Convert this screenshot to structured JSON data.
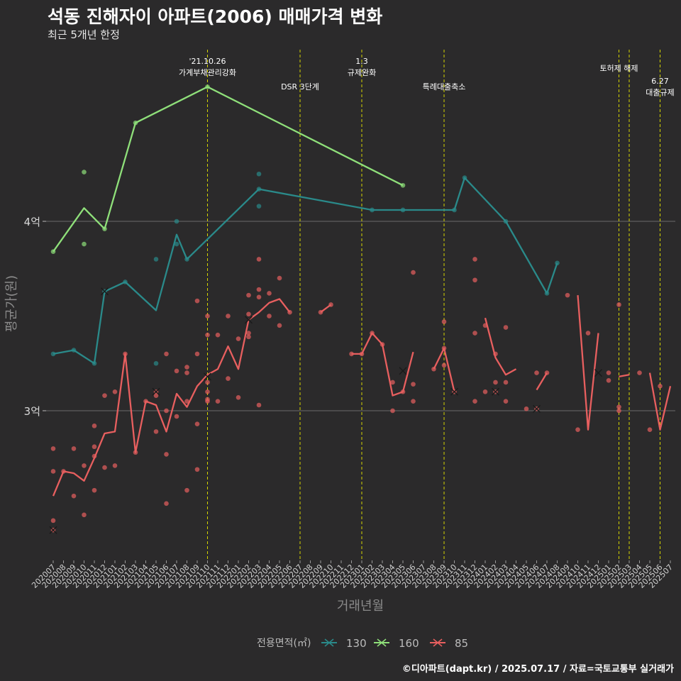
{
  "title": "석동 진해자이 아파트(2006) 매매가격 변화",
  "subtitle": "최근 5개년 한정",
  "caption": "©디아파트(dapt.kr) / 2025.07.17 / 자료=국토교통부 실거래가",
  "colors": {
    "background": "#2b2a2b",
    "s130": "#2a8a8a",
    "s160": "#8fe07a",
    "s85": "#e85f5f",
    "event_line": "#d4d400",
    "gridline": "#6b6b6b"
  },
  "chart_data": {
    "type": "line",
    "xlabel": "거래년월",
    "ylabel": "평균가(원)",
    "ylim": [
      2.3,
      4.8
    ],
    "yticks": [
      {
        "value": 3,
        "label": "3억"
      },
      {
        "value": 4,
        "label": "4억"
      }
    ],
    "grid": "horizontal major lines only",
    "legend_title": "전용면적(㎡)",
    "legend_position": "bottom",
    "categories": [
      "202007",
      "202008",
      "202009",
      "202010",
      "202011",
      "202012",
      "202101",
      "202102",
      "202103",
      "202104",
      "202105",
      "202106",
      "202107",
      "202108",
      "202109",
      "202110",
      "202111",
      "202112",
      "202201",
      "202202",
      "202203",
      "202204",
      "202205",
      "202206",
      "202207",
      "202208",
      "202209",
      "202210",
      "202211",
      "202212",
      "202301",
      "202302",
      "202303",
      "202304",
      "202305",
      "202306",
      "202307",
      "202308",
      "202309",
      "202310",
      "202311",
      "202312",
      "202401",
      "202402",
      "202403",
      "202404",
      "202405",
      "202406",
      "202407",
      "202408",
      "202409",
      "202410",
      "202411",
      "202412",
      "202501",
      "202502",
      "202503",
      "202504",
      "202505",
      "202506",
      "202507"
    ],
    "events": [
      {
        "x": 15,
        "label": "'21.10.26\n가계부채관리강화",
        "row": 0
      },
      {
        "x": 24,
        "label": "DSR 3단계",
        "row": 2
      },
      {
        "x": 30,
        "label": "1.3\n규제완화",
        "row": 0
      },
      {
        "x": 38,
        "label": "특례대출축소",
        "row": 2
      },
      {
        "x": 55,
        "label": "토허제 해제",
        "row": 1
      },
      {
        "x": 56,
        "label": "",
        "row": 1
      },
      {
        "x": 59,
        "label": "6.27\n대출규제",
        "row": 1.5
      }
    ],
    "series": [
      {
        "name": "130",
        "line": [
          [
            0,
            3.3
          ],
          [
            2,
            3.32
          ],
          [
            4,
            3.25
          ],
          [
            5,
            3.63
          ],
          [
            7,
            3.68
          ],
          [
            10,
            3.53
          ],
          [
            12,
            3.93
          ],
          [
            13,
            3.8
          ],
          [
            20,
            4.17
          ],
          [
            31,
            4.06
          ],
          [
            34,
            4.06
          ],
          [
            39,
            4.06
          ],
          [
            40,
            4.23
          ],
          [
            44,
            4.0
          ],
          [
            48,
            3.62
          ],
          [
            49,
            3.78
          ]
        ],
        "points": [
          [
            0,
            3.3
          ],
          [
            2,
            3.32
          ],
          [
            4,
            3.25
          ],
          [
            5,
            3.63
          ],
          [
            7,
            3.68
          ],
          [
            10,
            3.8
          ],
          [
            10,
            3.25
          ],
          [
            12,
            4.0
          ],
          [
            12,
            3.88
          ],
          [
            13,
            3.8
          ],
          [
            20,
            4.25
          ],
          [
            20,
            4.17
          ],
          [
            20,
            4.08
          ],
          [
            31,
            4.06
          ],
          [
            34,
            4.06
          ],
          [
            39,
            4.06
          ],
          [
            40,
            4.23
          ],
          [
            44,
            4.0
          ],
          [
            48,
            3.62
          ],
          [
            49,
            3.78
          ]
        ],
        "crosses": [
          [
            5,
            3.63
          ]
        ]
      },
      {
        "name": "160",
        "line": [
          [
            0,
            3.84
          ],
          [
            3,
            4.07
          ],
          [
            5,
            3.96
          ],
          [
            8,
            4.52
          ],
          [
            15,
            4.71
          ],
          [
            34,
            4.19
          ]
        ],
        "points": [
          [
            0,
            3.84
          ],
          [
            3,
            4.26
          ],
          [
            3,
            3.88
          ],
          [
            5,
            3.96
          ],
          [
            8,
            4.52
          ],
          [
            15,
            4.71
          ],
          [
            34,
            4.19
          ]
        ],
        "crosses": []
      },
      {
        "name": "85",
        "line": [
          [
            [
              0,
              2.55
            ],
            [
              1,
              2.68
            ],
            [
              2,
              2.67
            ],
            [
              3,
              2.63
            ],
            [
              4,
              2.75
            ],
            [
              5,
              2.88
            ],
            [
              6,
              2.89
            ],
            [
              7,
              3.3
            ],
            [
              8,
              2.78
            ],
            [
              9,
              3.05
            ],
            [
              10,
              3.03
            ],
            [
              11,
              2.89
            ],
            [
              12,
              3.09
            ],
            [
              13,
              3.02
            ],
            [
              14,
              3.13
            ],
            [
              15,
              3.19
            ],
            [
              16,
              3.22
            ],
            [
              17,
              3.34
            ],
            [
              18,
              3.22
            ],
            [
              19,
              3.48
            ],
            [
              20,
              3.52
            ],
            [
              21,
              3.57
            ],
            [
              22,
              3.59
            ],
            [
              23,
              3.52
            ]
          ],
          [
            [
              26,
              3.52
            ],
            [
              27,
              3.56
            ]
          ],
          [
            [
              29,
              3.3
            ],
            [
              30,
              3.3
            ],
            [
              31,
              3.41
            ],
            [
              32,
              3.35
            ],
            [
              33,
              3.08
            ],
            [
              34,
              3.1
            ],
            [
              35,
              3.31
            ]
          ],
          [
            [
              37,
              3.22
            ],
            [
              38,
              3.33
            ],
            [
              39,
              3.1
            ]
          ],
          [
            [
              42,
              3.49
            ],
            [
              43,
              3.28
            ],
            [
              44,
              3.19
            ],
            [
              45,
              3.22
            ]
          ],
          [
            [
              47,
              3.11
            ],
            [
              48,
              3.2
            ]
          ],
          [
            [
              51,
              3.61
            ],
            [
              52,
              2.9
            ],
            [
              53,
              3.41
            ]
          ],
          [
            [
              55,
              3.18
            ],
            [
              56,
              3.19
            ]
          ],
          [
            [
              58,
              3.2
            ],
            [
              59,
              2.9
            ],
            [
              60,
              3.13
            ]
          ]
        ],
        "points": [
          [
            0,
            2.8
          ],
          [
            0,
            2.68
          ],
          [
            0,
            2.42
          ],
          [
            0,
            2.37
          ],
          [
            1,
            2.68
          ],
          [
            2,
            2.8
          ],
          [
            2,
            2.55
          ],
          [
            3,
            2.71
          ],
          [
            3,
            2.45
          ],
          [
            4,
            2.92
          ],
          [
            4,
            2.81
          ],
          [
            4,
            2.76
          ],
          [
            4,
            2.58
          ],
          [
            5,
            3.08
          ],
          [
            5,
            2.7
          ],
          [
            6,
            3.1
          ],
          [
            6,
            2.71
          ],
          [
            7,
            3.3
          ],
          [
            8,
            2.78
          ],
          [
            9,
            3.05
          ],
          [
            10,
            3.1
          ],
          [
            10,
            3.08
          ],
          [
            10,
            2.89
          ],
          [
            11,
            3.3
          ],
          [
            11,
            2.77
          ],
          [
            11,
            2.51
          ],
          [
            11,
            3.0
          ],
          [
            12,
            3.21
          ],
          [
            12,
            2.97
          ],
          [
            13,
            3.23
          ],
          [
            13,
            3.2
          ],
          [
            13,
            3.05
          ],
          [
            13,
            2.58
          ],
          [
            14,
            3.58
          ],
          [
            14,
            3.3
          ],
          [
            14,
            2.93
          ],
          [
            14,
            2.69
          ],
          [
            15,
            3.5
          ],
          [
            15,
            3.4
          ],
          [
            15,
            3.15
          ],
          [
            15,
            3.1
          ],
          [
            15,
            3.06
          ],
          [
            15,
            3.05
          ],
          [
            16,
            3.4
          ],
          [
            16,
            3.05
          ],
          [
            17,
            3.5
          ],
          [
            17,
            3.17
          ],
          [
            18,
            3.07
          ],
          [
            18,
            3.38
          ],
          [
            19,
            3.61
          ],
          [
            19,
            3.41
          ],
          [
            19,
            3.39
          ],
          [
            19,
            3.51
          ],
          [
            20,
            3.8
          ],
          [
            20,
            3.64
          ],
          [
            20,
            3.6
          ],
          [
            20,
            3.03
          ],
          [
            21,
            3.62
          ],
          [
            21,
            3.5
          ],
          [
            22,
            3.7
          ],
          [
            22,
            3.45
          ],
          [
            23,
            3.52
          ],
          [
            26,
            3.52
          ],
          [
            27,
            3.56
          ],
          [
            29,
            3.3
          ],
          [
            30,
            3.3
          ],
          [
            31,
            3.41
          ],
          [
            32,
            3.35
          ],
          [
            33,
            3.15
          ],
          [
            33,
            3.0
          ],
          [
            34,
            3.1
          ],
          [
            35,
            3.73
          ],
          [
            35,
            3.14
          ],
          [
            35,
            3.05
          ],
          [
            37,
            3.22
          ],
          [
            38,
            3.47
          ],
          [
            38,
            3.33
          ],
          [
            38,
            3.24
          ],
          [
            39,
            3.1
          ],
          [
            41,
            3.8
          ],
          [
            41,
            3.69
          ],
          [
            41,
            3.41
          ],
          [
            41,
            3.05
          ],
          [
            42,
            3.45
          ],
          [
            42,
            3.1
          ],
          [
            43,
            3.3
          ],
          [
            43,
            3.15
          ],
          [
            43,
            3.1
          ],
          [
            44,
            3.44
          ],
          [
            44,
            3.15
          ],
          [
            44,
            3.05
          ],
          [
            46,
            3.01
          ],
          [
            47,
            3.2
          ],
          [
            47,
            3.01
          ],
          [
            48,
            3.2
          ],
          [
            50,
            3.61
          ],
          [
            51,
            2.9
          ],
          [
            52,
            3.41
          ],
          [
            54,
            3.2
          ],
          [
            54,
            3.16
          ],
          [
            55,
            3.56
          ],
          [
            55,
            3.02
          ],
          [
            55,
            3.0
          ],
          [
            57,
            3.2
          ],
          [
            58,
            2.9
          ],
          [
            59,
            3.13
          ]
        ],
        "crosses": [
          [
            0,
            2.37
          ],
          [
            10,
            3.1
          ],
          [
            15,
            3.18
          ],
          [
            19,
            3.48
          ],
          [
            34,
            3.21
          ],
          [
            39,
            3.1
          ],
          [
            43,
            3.1
          ],
          [
            47,
            3.01
          ],
          [
            53,
            3.2
          ]
        ]
      }
    ]
  }
}
